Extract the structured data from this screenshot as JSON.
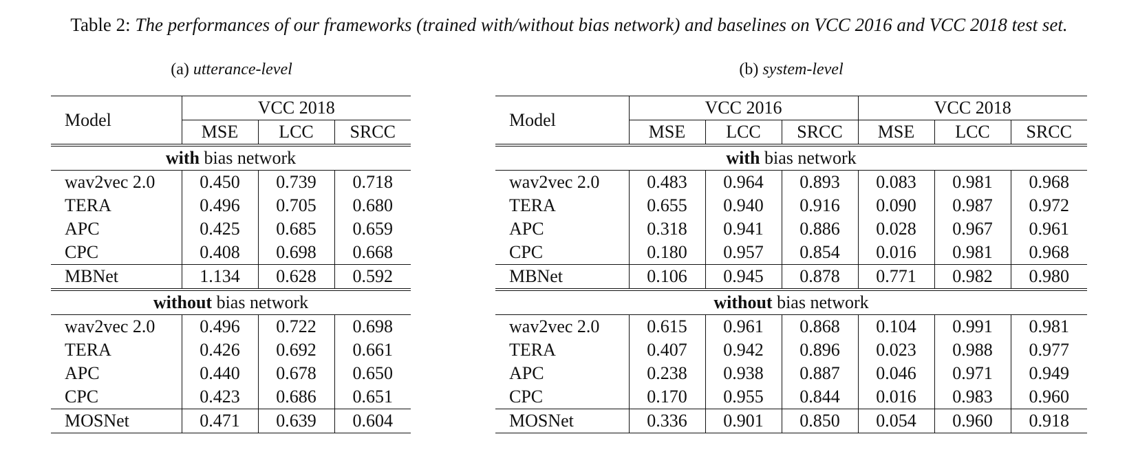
{
  "caption": {
    "label": "Table 2:",
    "title": "The performances of our frameworks (trained with/without bias network) and baselines on VCC 2016 and VCC 2018 test set."
  },
  "table_a": {
    "prefix": "(a)",
    "name": "utterance-level",
    "model_header": "Model",
    "dataset": "VCC 2018",
    "metrics": [
      "MSE",
      "LCC",
      "SRCC"
    ],
    "with_group": {
      "bold": "with",
      "rest": " bias network"
    },
    "with_rows": [
      {
        "model": "wav2vec 2.0",
        "values": [
          "0.450",
          "0.739",
          "0.718"
        ]
      },
      {
        "model": "TERA",
        "values": [
          "0.496",
          "0.705",
          "0.680"
        ]
      },
      {
        "model": "APC",
        "values": [
          "0.425",
          "0.685",
          "0.659"
        ]
      },
      {
        "model": "CPC",
        "values": [
          "0.408",
          "0.698",
          "0.668"
        ]
      }
    ],
    "with_baseline": {
      "model": "MBNet",
      "values": [
        "1.134",
        "0.628",
        "0.592"
      ]
    },
    "without_group": {
      "bold": "without",
      "rest": " bias network"
    },
    "without_rows": [
      {
        "model": "wav2vec 2.0",
        "values": [
          "0.496",
          "0.722",
          "0.698"
        ]
      },
      {
        "model": "TERA",
        "values": [
          "0.426",
          "0.692",
          "0.661"
        ]
      },
      {
        "model": "APC",
        "values": [
          "0.440",
          "0.678",
          "0.650"
        ]
      },
      {
        "model": "CPC",
        "values": [
          "0.423",
          "0.686",
          "0.651"
        ]
      }
    ],
    "without_baseline": {
      "model": "MOSNet",
      "values": [
        "0.471",
        "0.639",
        "0.604"
      ]
    }
  },
  "table_b": {
    "prefix": "(b)",
    "name": "system-level",
    "model_header": "Model",
    "datasets": [
      "VCC 2016",
      "VCC 2018"
    ],
    "metrics": [
      "MSE",
      "LCC",
      "SRCC",
      "MSE",
      "LCC",
      "SRCC"
    ],
    "with_group": {
      "bold": "with",
      "rest": " bias network"
    },
    "with_rows": [
      {
        "model": "wav2vec 2.0",
        "values": [
          "0.483",
          "0.964",
          "0.893",
          "0.083",
          "0.981",
          "0.968"
        ]
      },
      {
        "model": "TERA",
        "values": [
          "0.655",
          "0.940",
          "0.916",
          "0.090",
          "0.987",
          "0.972"
        ]
      },
      {
        "model": "APC",
        "values": [
          "0.318",
          "0.941",
          "0.886",
          "0.028",
          "0.967",
          "0.961"
        ]
      },
      {
        "model": "CPC",
        "values": [
          "0.180",
          "0.957",
          "0.854",
          "0.016",
          "0.981",
          "0.968"
        ]
      }
    ],
    "with_baseline": {
      "model": "MBNet",
      "values": [
        "0.106",
        "0.945",
        "0.878",
        "0.771",
        "0.982",
        "0.980"
      ]
    },
    "without_group": {
      "bold": "without",
      "rest": " bias network"
    },
    "without_rows": [
      {
        "model": "wav2vec 2.0",
        "values": [
          "0.615",
          "0.961",
          "0.868",
          "0.104",
          "0.991",
          "0.981"
        ]
      },
      {
        "model": "TERA",
        "values": [
          "0.407",
          "0.942",
          "0.896",
          "0.023",
          "0.988",
          "0.977"
        ]
      },
      {
        "model": "APC",
        "values": [
          "0.238",
          "0.938",
          "0.887",
          "0.046",
          "0.971",
          "0.949"
        ]
      },
      {
        "model": "CPC",
        "values": [
          "0.170",
          "0.955",
          "0.844",
          "0.016",
          "0.983",
          "0.960"
        ]
      }
    ],
    "without_baseline": {
      "model": "MOSNet",
      "values": [
        "0.336",
        "0.901",
        "0.850",
        "0.054",
        "0.960",
        "0.918"
      ]
    }
  }
}
